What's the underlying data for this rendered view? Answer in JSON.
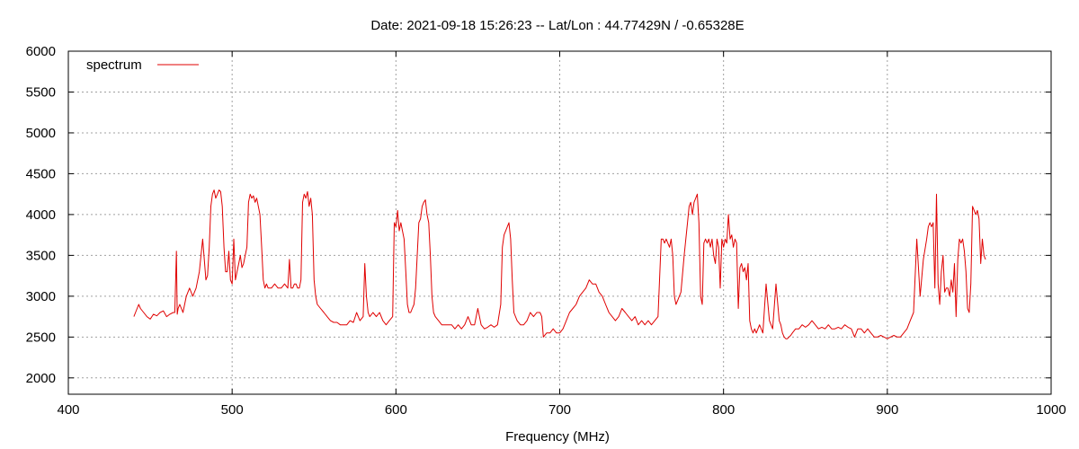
{
  "chart_data": {
    "type": "line",
    "title": "Date: 2021-09-18 15:26:23  --  Lat/Lon : 44.77429N / -0.65328E",
    "xlabel": "Frequency (MHz)",
    "ylabel": "",
    "xlim": [
      400,
      1000
    ],
    "ylim": [
      1800,
      6000
    ],
    "xticks": [
      400,
      500,
      600,
      700,
      800,
      900,
      1000
    ],
    "yticks": [
      2000,
      2500,
      3000,
      3500,
      4000,
      4500,
      5000,
      5500,
      6000
    ],
    "grid": true,
    "legend_position": "top-left",
    "series": [
      {
        "name": "spectrum",
        "color": "#e00000",
        "x": [
          440,
          441,
          442,
          443,
          444,
          446,
          448,
          450,
          452,
          454,
          456,
          458,
          460,
          462,
          464,
          465,
          466,
          466.5,
          467,
          468,
          470,
          472,
          474,
          476,
          478,
          480,
          482,
          484,
          485,
          486,
          487,
          488,
          489,
          490,
          491,
          492,
          493,
          494,
          495,
          496,
          497,
          498,
          499,
          500,
          501,
          502,
          503,
          504,
          505,
          506,
          507,
          508,
          509,
          510,
          511,
          512,
          513,
          514,
          515,
          516,
          517,
          518,
          519,
          520,
          521,
          522,
          524,
          526,
          528,
          530,
          532,
          534,
          535,
          536,
          537,
          538,
          539,
          540,
          541,
          542,
          543,
          544,
          545,
          546,
          547,
          548,
          549,
          550,
          551,
          552,
          554,
          556,
          558,
          560,
          562,
          564,
          566,
          568,
          570,
          572,
          574,
          576,
          578,
          580,
          581,
          582,
          583,
          584,
          586,
          588,
          590,
          592,
          594,
          596,
          598,
          599,
          600,
          601,
          602,
          603,
          604,
          605,
          606,
          607,
          608,
          609,
          610,
          611,
          612,
          614,
          615,
          616,
          617,
          618,
          619,
          620,
          621,
          622,
          623,
          624,
          626,
          628,
          630,
          632,
          634,
          636,
          638,
          640,
          642,
          644,
          646,
          648,
          650,
          652,
          654,
          656,
          658,
          660,
          662,
          664,
          665,
          666,
          667,
          668,
          669,
          670,
          671,
          672,
          674,
          676,
          678,
          680,
          682,
          684,
          686,
          688,
          689,
          690,
          692,
          694,
          696,
          698,
          700,
          702,
          704,
          706,
          708,
          710,
          712,
          714,
          716,
          718,
          720,
          722,
          724,
          726,
          728,
          730,
          732,
          734,
          736,
          738,
          740,
          742,
          744,
          746,
          748,
          750,
          752,
          754,
          756,
          758,
          760,
          762,
          763,
          764,
          765,
          766,
          767,
          768,
          769,
          770,
          771,
          772,
          774,
          776,
          778,
          779,
          780,
          781,
          782,
          783,
          784,
          785,
          786,
          787,
          788,
          789,
          790,
          791,
          792,
          793,
          794,
          795,
          796,
          797,
          798,
          799,
          800,
          801,
          802,
          803,
          804,
          805,
          806,
          807,
          808,
          809,
          810,
          811,
          812,
          813,
          814,
          815,
          816,
          817,
          818,
          819,
          820,
          822,
          824,
          826,
          828,
          830,
          832,
          834,
          835,
          836,
          837,
          838,
          839,
          840,
          841,
          842,
          844,
          846,
          848,
          850,
          852,
          854,
          856,
          858,
          860,
          862,
          864,
          866,
          868,
          870,
          872,
          874,
          876,
          878,
          880,
          882,
          884,
          886,
          888,
          890,
          892,
          894,
          896,
          898,
          900,
          902,
          904,
          906,
          908,
          910,
          912,
          914,
          916,
          918,
          920,
          922,
          924,
          925,
          926,
          927,
          928,
          929,
          930,
          931,
          932,
          933,
          934,
          935,
          936,
          937,
          938,
          939,
          940,
          941,
          942,
          943,
          944,
          945,
          946,
          947,
          948,
          949,
          950,
          951,
          952,
          953,
          954,
          955,
          956,
          957,
          958,
          959,
          960
        ],
        "y": [
          2750,
          2800,
          2850,
          2900,
          2850,
          2800,
          2750,
          2720,
          2780,
          2760,
          2800,
          2820,
          2750,
          2780,
          2800,
          2800,
          3550,
          2780,
          2850,
          2900,
          2800,
          3000,
          3100,
          3000,
          3100,
          3300,
          3700,
          3200,
          3250,
          3600,
          4100,
          4250,
          4300,
          4200,
          4250,
          4300,
          4280,
          4100,
          3600,
          3300,
          3300,
          3550,
          3200,
          3150,
          3700,
          3200,
          3300,
          3400,
          3500,
          3350,
          3400,
          3500,
          3600,
          4150,
          4250,
          4200,
          4230,
          4150,
          4200,
          4100,
          4000,
          3600,
          3200,
          3100,
          3150,
          3100,
          3100,
          3150,
          3100,
          3100,
          3150,
          3100,
          3450,
          3100,
          3100,
          3150,
          3150,
          3100,
          3100,
          3200,
          4150,
          4250,
          4200,
          4280,
          4100,
          4200,
          4000,
          3200,
          3000,
          2900,
          2850,
          2800,
          2750,
          2700,
          2680,
          2680,
          2650,
          2650,
          2650,
          2700,
          2680,
          2800,
          2700,
          2750,
          3400,
          3000,
          2800,
          2750,
          2800,
          2750,
          2800,
          2700,
          2650,
          2700,
          2750,
          3900,
          3850,
          4050,
          3800,
          3900,
          3800,
          3700,
          3300,
          2900,
          2800,
          2800,
          2850,
          2900,
          3100,
          3900,
          3950,
          4100,
          4150,
          4180,
          4000,
          3900,
          3500,
          3000,
          2800,
          2750,
          2700,
          2650,
          2650,
          2650,
          2650,
          2600,
          2650,
          2600,
          2650,
          2750,
          2650,
          2650,
          2850,
          2650,
          2600,
          2620,
          2650,
          2620,
          2650,
          2900,
          3600,
          3750,
          3800,
          3850,
          3900,
          3700,
          3200,
          2800,
          2700,
          2650,
          2650,
          2700,
          2800,
          2750,
          2800,
          2800,
          2750,
          2500,
          2550,
          2550,
          2600,
          2550,
          2550,
          2600,
          2700,
          2800,
          2850,
          2900,
          3000,
          3050,
          3100,
          3200,
          3150,
          3150,
          3050,
          3000,
          2900,
          2800,
          2750,
          2700,
          2750,
          2850,
          2800,
          2750,
          2700,
          2750,
          2650,
          2700,
          2650,
          2700,
          2650,
          2700,
          2750,
          3700,
          3700,
          3650,
          3700,
          3650,
          3600,
          3700,
          3500,
          3000,
          2900,
          2950,
          3050,
          3500,
          3900,
          4100,
          4150,
          4000,
          4150,
          4200,
          4250,
          3900,
          3000,
          2900,
          3650,
          3700,
          3650,
          3700,
          3600,
          3700,
          3500,
          3400,
          3700,
          3600,
          3100,
          3700,
          3600,
          3700,
          3650,
          4000,
          3700,
          3750,
          3600,
          3700,
          3650,
          2850,
          3350,
          3400,
          3300,
          3350,
          3200,
          3400,
          2700,
          2600,
          2550,
          2600,
          2550,
          2650,
          2550,
          3150,
          2700,
          2600,
          3150,
          2700,
          2650,
          2550,
          2500,
          2480,
          2480,
          2500,
          2520,
          2550,
          2600,
          2600,
          2650,
          2620,
          2650,
          2700,
          2650,
          2600,
          2620,
          2600,
          2650,
          2600,
          2600,
          2620,
          2600,
          2650,
          2620,
          2600,
          2500,
          2600,
          2600,
          2550,
          2600,
          2550,
          2500,
          2500,
          2520,
          2500,
          2480,
          2500,
          2520,
          2500,
          2500,
          2550,
          2600,
          2700,
          2800,
          3700,
          3000,
          3450,
          3700,
          3850,
          3900,
          3850,
          3900,
          3100,
          4250,
          3150,
          2900,
          3300,
          3500,
          3050,
          3100,
          3100,
          3000,
          3200,
          3050,
          3400,
          2750,
          3450,
          3700,
          3650,
          3700,
          3550,
          3300,
          2850,
          2800,
          3150,
          4100,
          4050,
          4000,
          4050,
          3950,
          3400,
          3700,
          3500,
          3450
        ]
      }
    ]
  }
}
